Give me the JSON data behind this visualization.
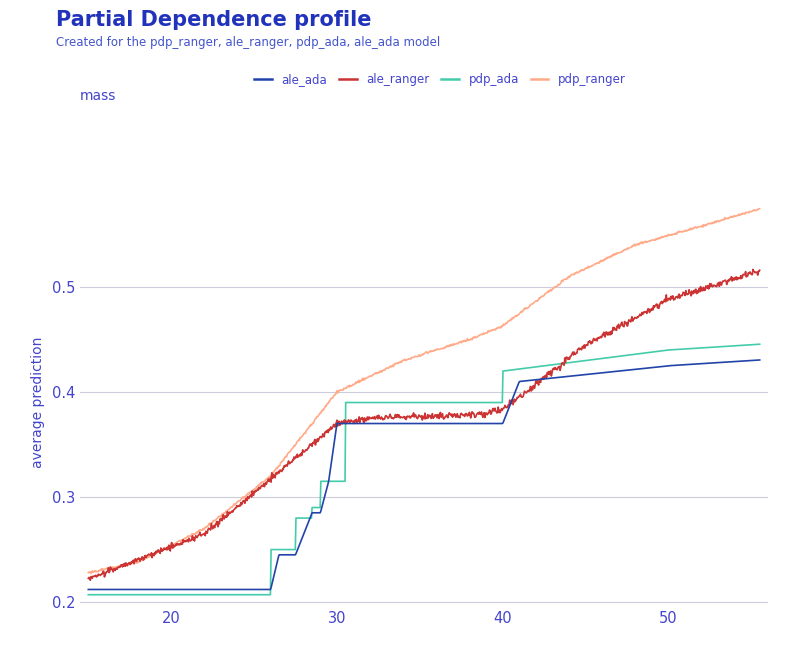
{
  "title": "Partial Dependence profile",
  "subtitle": "Created for the pdp_ranger, ale_ranger, pdp_ada, ale_ada model",
  "xlabel_label": "mass",
  "ylabel_label": "average prediction",
  "title_color": "#2233bb",
  "subtitle_color": "#4455cc",
  "label_color": "#4444cc",
  "tick_color": "#4444cc",
  "background_color": "#ffffff",
  "grid_color": "#ccccdd",
  "xlim": [
    14.5,
    56
  ],
  "ylim": [
    0.196,
    0.585
  ],
  "yticks": [
    0.2,
    0.3,
    0.4,
    0.5
  ],
  "xticks": [
    20,
    30,
    40,
    50
  ],
  "ale_ada_color": "#2244aa",
  "ale_ranger_color": "#cc3333",
  "pdp_ada_color": "#44ccaa",
  "pdp_ranger_color": "#ffaa88",
  "line_width": 1.2
}
